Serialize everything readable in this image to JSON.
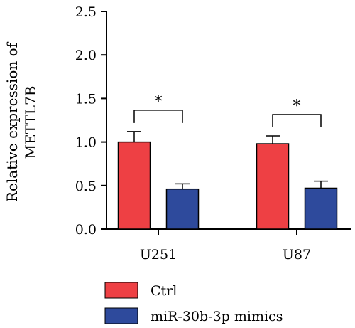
{
  "chart_data": {
    "type": "bar",
    "ylabel": [
      "Relative expression of",
      "METTL7B"
    ],
    "ylim": [
      0,
      2.5
    ],
    "yticks": [
      "0.0",
      "0.5",
      "1.0",
      "1.5",
      "2.0",
      "2.5"
    ],
    "categories": [
      "U251",
      "U87"
    ],
    "series": [
      {
        "name": "Ctrl",
        "color": "#ee4044",
        "values": [
          1.0,
          0.98
        ],
        "errors": [
          0.12,
          0.09
        ]
      },
      {
        "name": "miR-30b-3p mimics",
        "color": "#2e4a9c",
        "values": [
          0.46,
          0.47
        ],
        "errors": [
          0.06,
          0.08
        ]
      }
    ],
    "significance": [
      "*",
      "*"
    ],
    "legend_position": "bottom-left"
  }
}
